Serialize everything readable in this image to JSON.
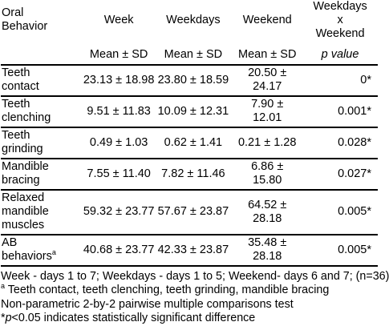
{
  "table": {
    "header": {
      "label_line1": "Oral",
      "label_line2": "Behavior",
      "week": "Week",
      "weekdays": "Weekdays",
      "weekend": "Weekend",
      "p_line1": "Weekdays",
      "p_line2": "x",
      "p_line3": "Weekend",
      "stat": "Mean ± SD",
      "p_value": "p value"
    },
    "rows": [
      {
        "label1": "Teeth",
        "label2": "contact",
        "label3": "",
        "week": "23.13 ± 18.98",
        "weekdays": "23.80 ± 18.59",
        "weekend1": "20.50 ±",
        "weekend2": "24.17",
        "p": "0*"
      },
      {
        "label1": "Teeth",
        "label2": "clenching",
        "label3": "",
        "week": "9.51 ± 11.83",
        "weekdays": "10.09 ± 12.31",
        "weekend1": "7.90 ±",
        "weekend2": "12.01",
        "p": "0.001*"
      },
      {
        "label1": "Teeth",
        "label2": "grinding",
        "label3": "",
        "week": "0.49 ± 1.03",
        "weekdays": "0.62 ± 1.41",
        "weekend1": "0.21 ± 1.28",
        "weekend2": "",
        "p": "0.028*"
      },
      {
        "label1": "Mandible",
        "label2": "bracing",
        "label3": "",
        "week": "7.55 ± 11.40",
        "weekdays": "7.82 ± 11.46",
        "weekend1": "6.86 ±",
        "weekend2": "15.80",
        "p": "0.027*"
      },
      {
        "label1": "Relaxed",
        "label2": "mandible",
        "label3": "muscles",
        "week": "59.32 ± 23.77",
        "weekdays": "57.67 ± 23.87",
        "weekend1": "64.52 ±",
        "weekend2": "28.18",
        "p": "0.005*"
      },
      {
        "label1": " AB",
        "label2": "behaviors",
        "label2_sup": "a",
        "label3": "",
        "week": "40.68 ± 23.77",
        "weekdays": "42.33 ± 23.87",
        "weekend1": "35.48 ±",
        "weekend2": "28.18",
        "p": "0.005*"
      }
    ]
  },
  "notes": {
    "line1": "Week - days 1 to 7; Weekdays - days 1 to 5; Weekend- days 6 and 7; (n=36)",
    "line2_sup": "a",
    "line2": " Teeth contact, teeth clenching, teeth grinding, mandible bracing",
    "line3": "Non-parametric 2-by-2 pairwise multiple comparisons test",
    "line4_star": "*",
    "line4_p": "p",
    "line4": "<0.05 indicates statistically significant difference"
  }
}
